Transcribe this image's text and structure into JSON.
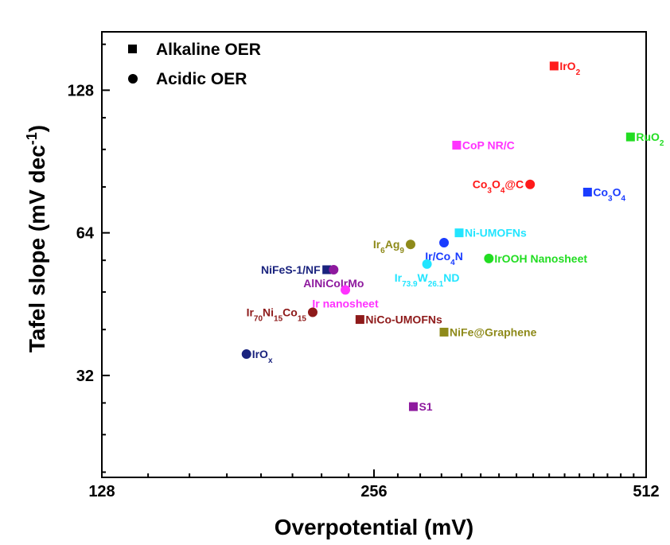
{
  "chart_data": {
    "type": "scatter",
    "title": "",
    "xlabel": "Overpotential (mV)",
    "ylabel": {
      "prefix": "Tafel slope (mV dec",
      "sup": "-1",
      "suffix": ")"
    },
    "x_scale": "log2",
    "y_scale": "log2",
    "xlim": [
      128,
      512
    ],
    "ylim": [
      19.5,
      170
    ],
    "x_ticks": [
      128,
      256,
      512
    ],
    "y_ticks": [
      32,
      64,
      128
    ],
    "legend": {
      "position": "top-left",
      "entries": [
        {
          "marker": "square",
          "label": "Alkaline OER"
        },
        {
          "marker": "circle",
          "label": "Acidic OER"
        }
      ]
    },
    "points": [
      {
        "label": [
          [
            "IrO",
            ""
          ],
          [
            "2",
            "sub"
          ]
        ],
        "marker": "square",
        "color": "#ff1a1a",
        "x": 405,
        "y": 144,
        "label_side": "right"
      },
      {
        "label": [
          [
            "RuO",
            ""
          ],
          [
            "2",
            "sub"
          ]
        ],
        "marker": "square",
        "color": "#22dd22",
        "x": 492,
        "y": 102,
        "label_side": "right"
      },
      {
        "label": [
          [
            "CoP NR/C",
            ""
          ]
        ],
        "marker": "square",
        "color": "#ff33ff",
        "x": 316,
        "y": 98,
        "label_side": "right"
      },
      {
        "label": [
          [
            "Co",
            ""
          ],
          [
            "3",
            "sub"
          ],
          [
            "O",
            ""
          ],
          [
            "4",
            "sub"
          ],
          [
            "@C",
            ""
          ]
        ],
        "marker": "circle",
        "color": "#ff1a1a",
        "x": 381,
        "y": 81,
        "label_side": "left"
      },
      {
        "label": [
          [
            "Co",
            ""
          ],
          [
            "3",
            "sub"
          ],
          [
            "O",
            ""
          ],
          [
            "4",
            "sub"
          ]
        ],
        "marker": "square",
        "color": "#1a3cff",
        "x": 441,
        "y": 78,
        "label_side": "right"
      },
      {
        "label": [
          [
            "Ni-UMOFNs",
            ""
          ]
        ],
        "marker": "square",
        "color": "#22e5ff",
        "x": 318,
        "y": 64,
        "label_side": "right"
      },
      {
        "label": [
          [
            "Ir",
            ""
          ],
          [
            "6",
            "sub"
          ],
          [
            "Ag",
            ""
          ],
          [
            "9",
            "sub"
          ]
        ],
        "marker": "circle",
        "color": "#8e8a1a",
        "x": 281,
        "y": 60.5,
        "label_side": "left"
      },
      {
        "label": [
          [
            "Ir/Co",
            ""
          ],
          [
            "4",
            "sub"
          ],
          [
            "N",
            ""
          ]
        ],
        "marker": "circle",
        "color": "#1a3cff",
        "x": 306,
        "y": 61,
        "label_side": "below"
      },
      {
        "label": [
          [
            "IrOOH Nanosheet",
            ""
          ]
        ],
        "marker": "circle",
        "color": "#22dd22",
        "x": 343,
        "y": 56.5,
        "label_side": "right"
      },
      {
        "label": [
          [
            "Ir",
            ""
          ],
          [
            "73.9",
            "sub"
          ],
          [
            "W",
            ""
          ],
          [
            "26.1",
            "sub"
          ],
          [
            "ND",
            ""
          ]
        ],
        "marker": "circle",
        "color": "#22e5ff",
        "x": 293,
        "y": 55,
        "label_side": "below"
      },
      {
        "label": [
          [
            "NiFeS-1/NF",
            ""
          ]
        ],
        "marker": "square",
        "color": "#1a237e",
        "x": 227,
        "y": 53.5,
        "label_side": "left"
      },
      {
        "label": [
          [
            "AlNiCoIrMo",
            ""
          ]
        ],
        "marker": "circle",
        "color": "#8e1a9e",
        "x": 231,
        "y": 53.5,
        "label_side": "below"
      },
      {
        "label": [
          [
            "Ir nanosheet",
            ""
          ]
        ],
        "marker": "circle",
        "color": "#ff33ff",
        "x": 238,
        "y": 48.5,
        "label_side": "below"
      },
      {
        "label": [
          [
            "Ir",
            ""
          ],
          [
            "70",
            "sub"
          ],
          [
            "Ni",
            ""
          ],
          [
            "15",
            "sub"
          ],
          [
            "Co",
            ""
          ],
          [
            "15",
            "sub"
          ]
        ],
        "marker": "circle",
        "color": "#8e1a1a",
        "x": 219,
        "y": 43.5,
        "label_side": "left"
      },
      {
        "label": [
          [
            "NiCo-UMOFNs",
            ""
          ]
        ],
        "marker": "square",
        "color": "#8e1a1a",
        "x": 247,
        "y": 42,
        "label_side": "right"
      },
      {
        "label": [
          [
            "NiFe@Graphene",
            ""
          ]
        ],
        "marker": "square",
        "color": "#8e8a1a",
        "x": 306,
        "y": 39.5,
        "label_side": "right"
      },
      {
        "label": [
          [
            "IrO",
            ""
          ],
          [
            "x",
            "sub"
          ]
        ],
        "marker": "circle",
        "color": "#1a237e",
        "x": 185,
        "y": 35.5,
        "label_side": "right"
      },
      {
        "label": [
          [
            "S1",
            ""
          ]
        ],
        "marker": "square",
        "color": "#8e1a9e",
        "x": 283,
        "y": 27.5,
        "label_side": "right"
      }
    ]
  }
}
